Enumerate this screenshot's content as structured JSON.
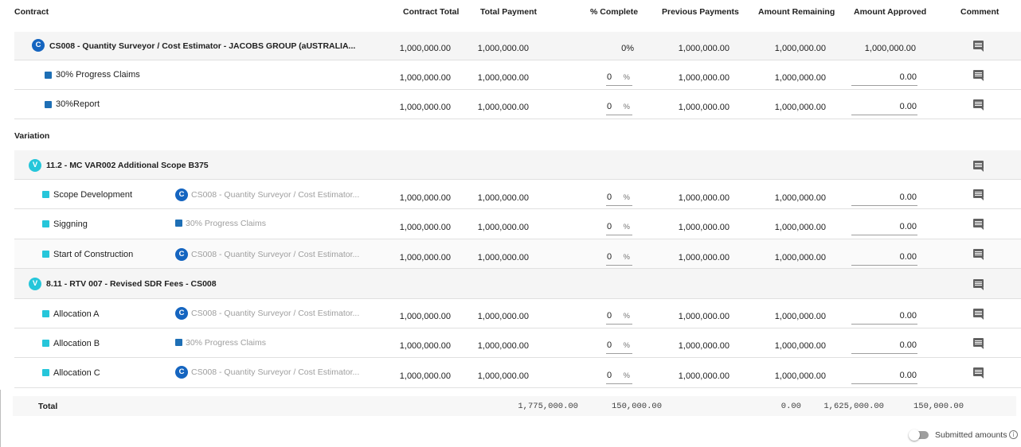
{
  "columns": {
    "contract": "Contract",
    "contract_total": "Contract Total",
    "total_payment": "Total Payment",
    "pct_complete": "% Complete",
    "previous_payments": "Previous Payments",
    "amount_remaining": "Amount Remaining",
    "amount_approved": "Amount Approved",
    "comment": "Comment"
  },
  "contract": {
    "badge": "C",
    "title": "CS008 - Quantity Surveyor / Cost Estimator - JACOBS GROUP (aUSTRALIA...",
    "contract_total": "1,000,000.00",
    "total_payment": "1,000,000.00",
    "pct_complete": "0%",
    "previous_payments": "1,000,000.00",
    "amount_remaining": "1,000,000.00",
    "amount_approved": "1,000,000.00",
    "items": [
      {
        "name": "30% Progress Claims",
        "contract_total": "1,000,000.00",
        "total_payment": "1,000,000.00",
        "pct": "0",
        "pct_unit": "%",
        "previous_payments": "1,000,000.00",
        "amount_remaining": "1,000,000.00",
        "approved": "0.00"
      },
      {
        "name": "30%Report",
        "contract_total": "1,000,000.00",
        "total_payment": "1,000,000.00",
        "pct": "0",
        "pct_unit": "%",
        "previous_payments": "1,000,000.00",
        "amount_remaining": "1,000,000.00",
        "approved": "0.00"
      }
    ]
  },
  "variation_label": "Variation",
  "variations": [
    {
      "badge": "V",
      "title": "11.2 - MC VAR002 Additional Scope B375",
      "items": [
        {
          "name": "Scope Development",
          "link_badge": "C",
          "link": "CS008 - Quantity Surveyor / Cost Estimator...",
          "contract_total": "1,000,000.00",
          "total_payment": "1,000,000.00",
          "pct": "0",
          "pct_unit": "%",
          "previous_payments": "1,000,000.00",
          "amount_remaining": "1,000,000.00",
          "approved": "0.00"
        },
        {
          "name": "Siggning",
          "link_badge": "",
          "link": "30% Progress Claims",
          "contract_total": "1,000,000.00",
          "total_payment": "1,000,000.00",
          "pct": "0",
          "pct_unit": "%",
          "previous_payments": "1,000,000.00",
          "amount_remaining": "1,000,000.00",
          "approved": "0.00"
        },
        {
          "name": "Start of Construction",
          "link_badge": "C",
          "link": "CS008 - Quantity Surveyor / Cost Estimator...",
          "contract_total": "1,000,000.00",
          "total_payment": "1,000,000.00",
          "pct": "0",
          "pct_unit": "%",
          "previous_payments": "1,000,000.00",
          "amount_remaining": "1,000,000.00",
          "approved": "0.00"
        }
      ]
    },
    {
      "badge": "V",
      "title": "8.11 - RTV 007 - Revised SDR Fees - CS008",
      "items": [
        {
          "name": "Allocation A",
          "link_badge": "C",
          "link": "CS008 - Quantity Surveyor / Cost Estimator...",
          "contract_total": "1,000,000.00",
          "total_payment": "1,000,000.00",
          "pct": "0",
          "pct_unit": "%",
          "previous_payments": "1,000,000.00",
          "amount_remaining": "1,000,000.00",
          "approved": "0.00"
        },
        {
          "name": "Allocation B",
          "link_badge": "",
          "link": "30% Progress Claims",
          "contract_total": "1,000,000.00",
          "total_payment": "1,000,000.00",
          "pct": "0",
          "pct_unit": "%",
          "previous_payments": "1,000,000.00",
          "amount_remaining": "1,000,000.00",
          "approved": "0.00"
        },
        {
          "name": "Allocation C",
          "link_badge": "C",
          "link": "CS008 - Quantity Surveyor / Cost Estimator...",
          "contract_total": "1,000,000.00",
          "total_payment": "1,000,000.00",
          "pct": "0",
          "pct_unit": "%",
          "previous_payments": "1,000,000.00",
          "amount_remaining": "1,000,000.00",
          "approved": "0.00"
        }
      ]
    }
  ],
  "total": {
    "label": "Total",
    "contract_total": "1,775,000.00",
    "total_payment": "150,000.00",
    "previous_payments": "0.00",
    "amount_remaining": "1,625,000.00",
    "amount_approved": "150,000.00"
  },
  "footer": {
    "toggle_label": "Submitted amounts",
    "toggle_on": false,
    "info_glyph": "i"
  },
  "colors": {
    "contract_badge": "#1565c0",
    "variation_badge": "#26c6da",
    "contract_square": "#1e6fb5",
    "variation_square": "#26c6da",
    "row_header_bg": "#f5f5f5"
  },
  "icons": {
    "comment": "comment-icon",
    "info": "info-icon"
  }
}
